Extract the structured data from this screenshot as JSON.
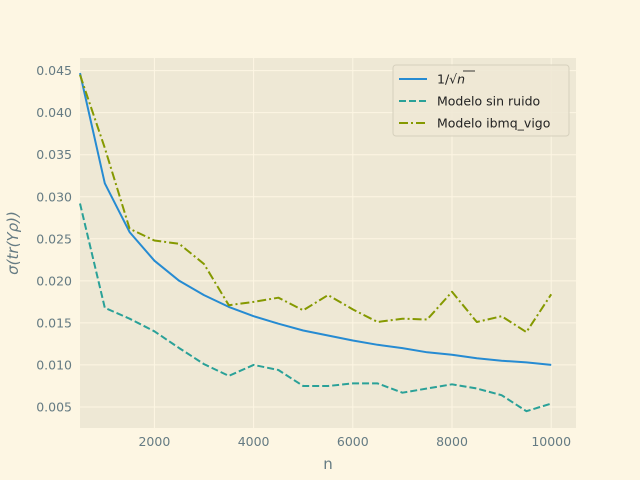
{
  "colors": {
    "figure_bg": "#fdf6e3",
    "axes_bg": "#eee8d5",
    "grid": "#fdf6e3",
    "text": "#657b83"
  },
  "chart_data": {
    "type": "line",
    "title": "",
    "xlabel": "n",
    "ylabel": "σ(tr(Yρ))",
    "xlim": [
      500,
      10500
    ],
    "ylim": [
      0.0025,
      0.0465
    ],
    "xticks": [
      2000,
      4000,
      6000,
      8000,
      10000
    ],
    "xtick_labels": [
      "2000",
      "4000",
      "6000",
      "8000",
      "10000"
    ],
    "yticks": [
      0.005,
      0.01,
      0.015,
      0.02,
      0.025,
      0.03,
      0.035,
      0.04,
      0.045
    ],
    "ytick_labels": [
      "0.005",
      "0.010",
      "0.015",
      "0.020",
      "0.025",
      "0.030",
      "0.035",
      "0.040",
      "0.045"
    ],
    "grid": true,
    "legend_position": "top-right",
    "x": [
      500,
      1000,
      1500,
      2000,
      2500,
      3000,
      3500,
      4000,
      4500,
      5000,
      5500,
      6000,
      6500,
      7000,
      7500,
      8000,
      8500,
      9000,
      9500,
      10000
    ],
    "series": [
      {
        "name": "1/√n",
        "legend_label_main": "1/√",
        "legend_label_italic": "n",
        "color": "#268bd2",
        "style": "solid",
        "values": [
          0.0447,
          0.0316,
          0.0258,
          0.0224,
          0.02,
          0.0183,
          0.0169,
          0.0158,
          0.0149,
          0.0141,
          0.0135,
          0.0129,
          0.0124,
          0.012,
          0.0115,
          0.0112,
          0.0108,
          0.0105,
          0.0103,
          0.01
        ]
      },
      {
        "name": "Modelo sin ruido",
        "color": "#2aa198",
        "style": "dashed",
        "values": [
          0.0292,
          0.0168,
          0.0155,
          0.014,
          0.012,
          0.0101,
          0.0087,
          0.01,
          0.0094,
          0.0075,
          0.0075,
          0.0078,
          0.0078,
          0.0067,
          0.0072,
          0.0077,
          0.0072,
          0.0064,
          0.0045,
          0.0054
        ]
      },
      {
        "name": "Modelo ibmq_vigo",
        "color": "#859900",
        "style": "dashdot",
        "values": [
          0.0445,
          0.0358,
          0.0262,
          0.0248,
          0.0244,
          0.022,
          0.0171,
          0.0175,
          0.018,
          0.0165,
          0.0183,
          0.0166,
          0.0151,
          0.0155,
          0.0154,
          0.0187,
          0.0151,
          0.0158,
          0.0139,
          0.0184
        ]
      }
    ]
  }
}
